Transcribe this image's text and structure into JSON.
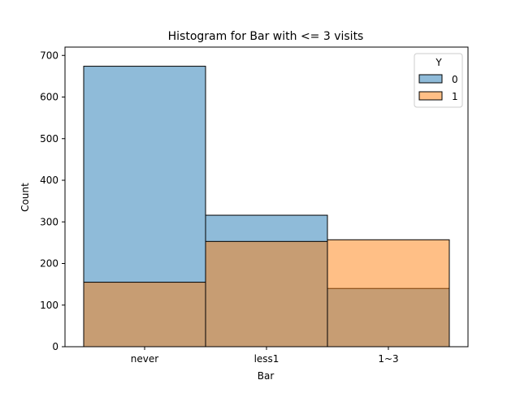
{
  "chart_data": {
    "type": "bar",
    "title": "Histogram for Bar with <= 3 visits",
    "xlabel": "Bar",
    "ylabel": "Count",
    "categories": [
      "never",
      "less1",
      "1~3"
    ],
    "ylim": [
      0,
      720
    ],
    "yticks": [
      0,
      100,
      200,
      300,
      400,
      500,
      600,
      700
    ],
    "grid": false,
    "legend": {
      "title": "Y",
      "placement": "top-right"
    },
    "series": [
      {
        "name": "0",
        "values": [
          674,
          316,
          140
        ],
        "color": "#1f77b4"
      },
      {
        "name": "1",
        "values": [
          155,
          253,
          257
        ],
        "color": "#ff7f0e"
      }
    ]
  }
}
